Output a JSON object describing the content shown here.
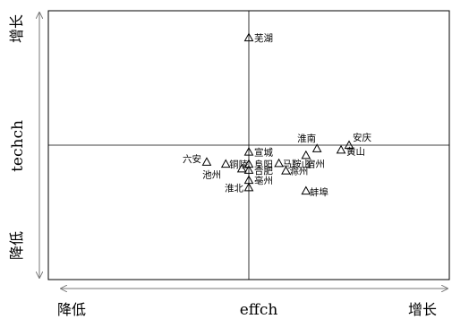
{
  "chart_data": {
    "type": "scatter",
    "title": "",
    "xlabel": "effch",
    "ylabel": "techch",
    "x_low_label": "降低",
    "x_high_label": "增长",
    "y_low_label": "降低",
    "y_high_label": "增长",
    "xlim": [
      0.8,
      1.2
    ],
    "ylim": [
      0.8,
      1.2
    ],
    "x_reference": 1.0,
    "y_reference": 1.0,
    "grid": false,
    "legend": "none",
    "marker": "open-triangle",
    "points": [
      {
        "label": "芜湖",
        "x": 1.0,
        "y": 1.16
      },
      {
        "label": "安庆",
        "x": 1.1,
        "y": 1.0
      },
      {
        "label": "淮南",
        "x": 1.068,
        "y": 0.995
      },
      {
        "label": "黄山",
        "x": 1.092,
        "y": 0.993
      },
      {
        "label": "宣城",
        "x": 1.0,
        "y": 0.99
      },
      {
        "label": "宿州",
        "x": 1.057,
        "y": 0.985
      },
      {
        "label": "六安",
        "x": 0.958,
        "y": 0.975
      },
      {
        "label": "马鞍山",
        "x": 1.03,
        "y": 0.973
      },
      {
        "label": "铜陵",
        "x": 0.977,
        "y": 0.972
      },
      {
        "label": "阜阳",
        "x": 1.0,
        "y": 0.972
      },
      {
        "label": "合肥",
        "x": 1.0,
        "y": 0.963
      },
      {
        "label": "滁州",
        "x": 1.037,
        "y": 0.962
      },
      {
        "label": "池州",
        "x": 0.993,
        "y": 0.965
      },
      {
        "label": "亳州",
        "x": 1.0,
        "y": 0.948
      },
      {
        "label": "淮北",
        "x": 1.0,
        "y": 0.937
      },
      {
        "label": "蚌埠",
        "x": 1.057,
        "y": 0.932
      }
    ]
  }
}
